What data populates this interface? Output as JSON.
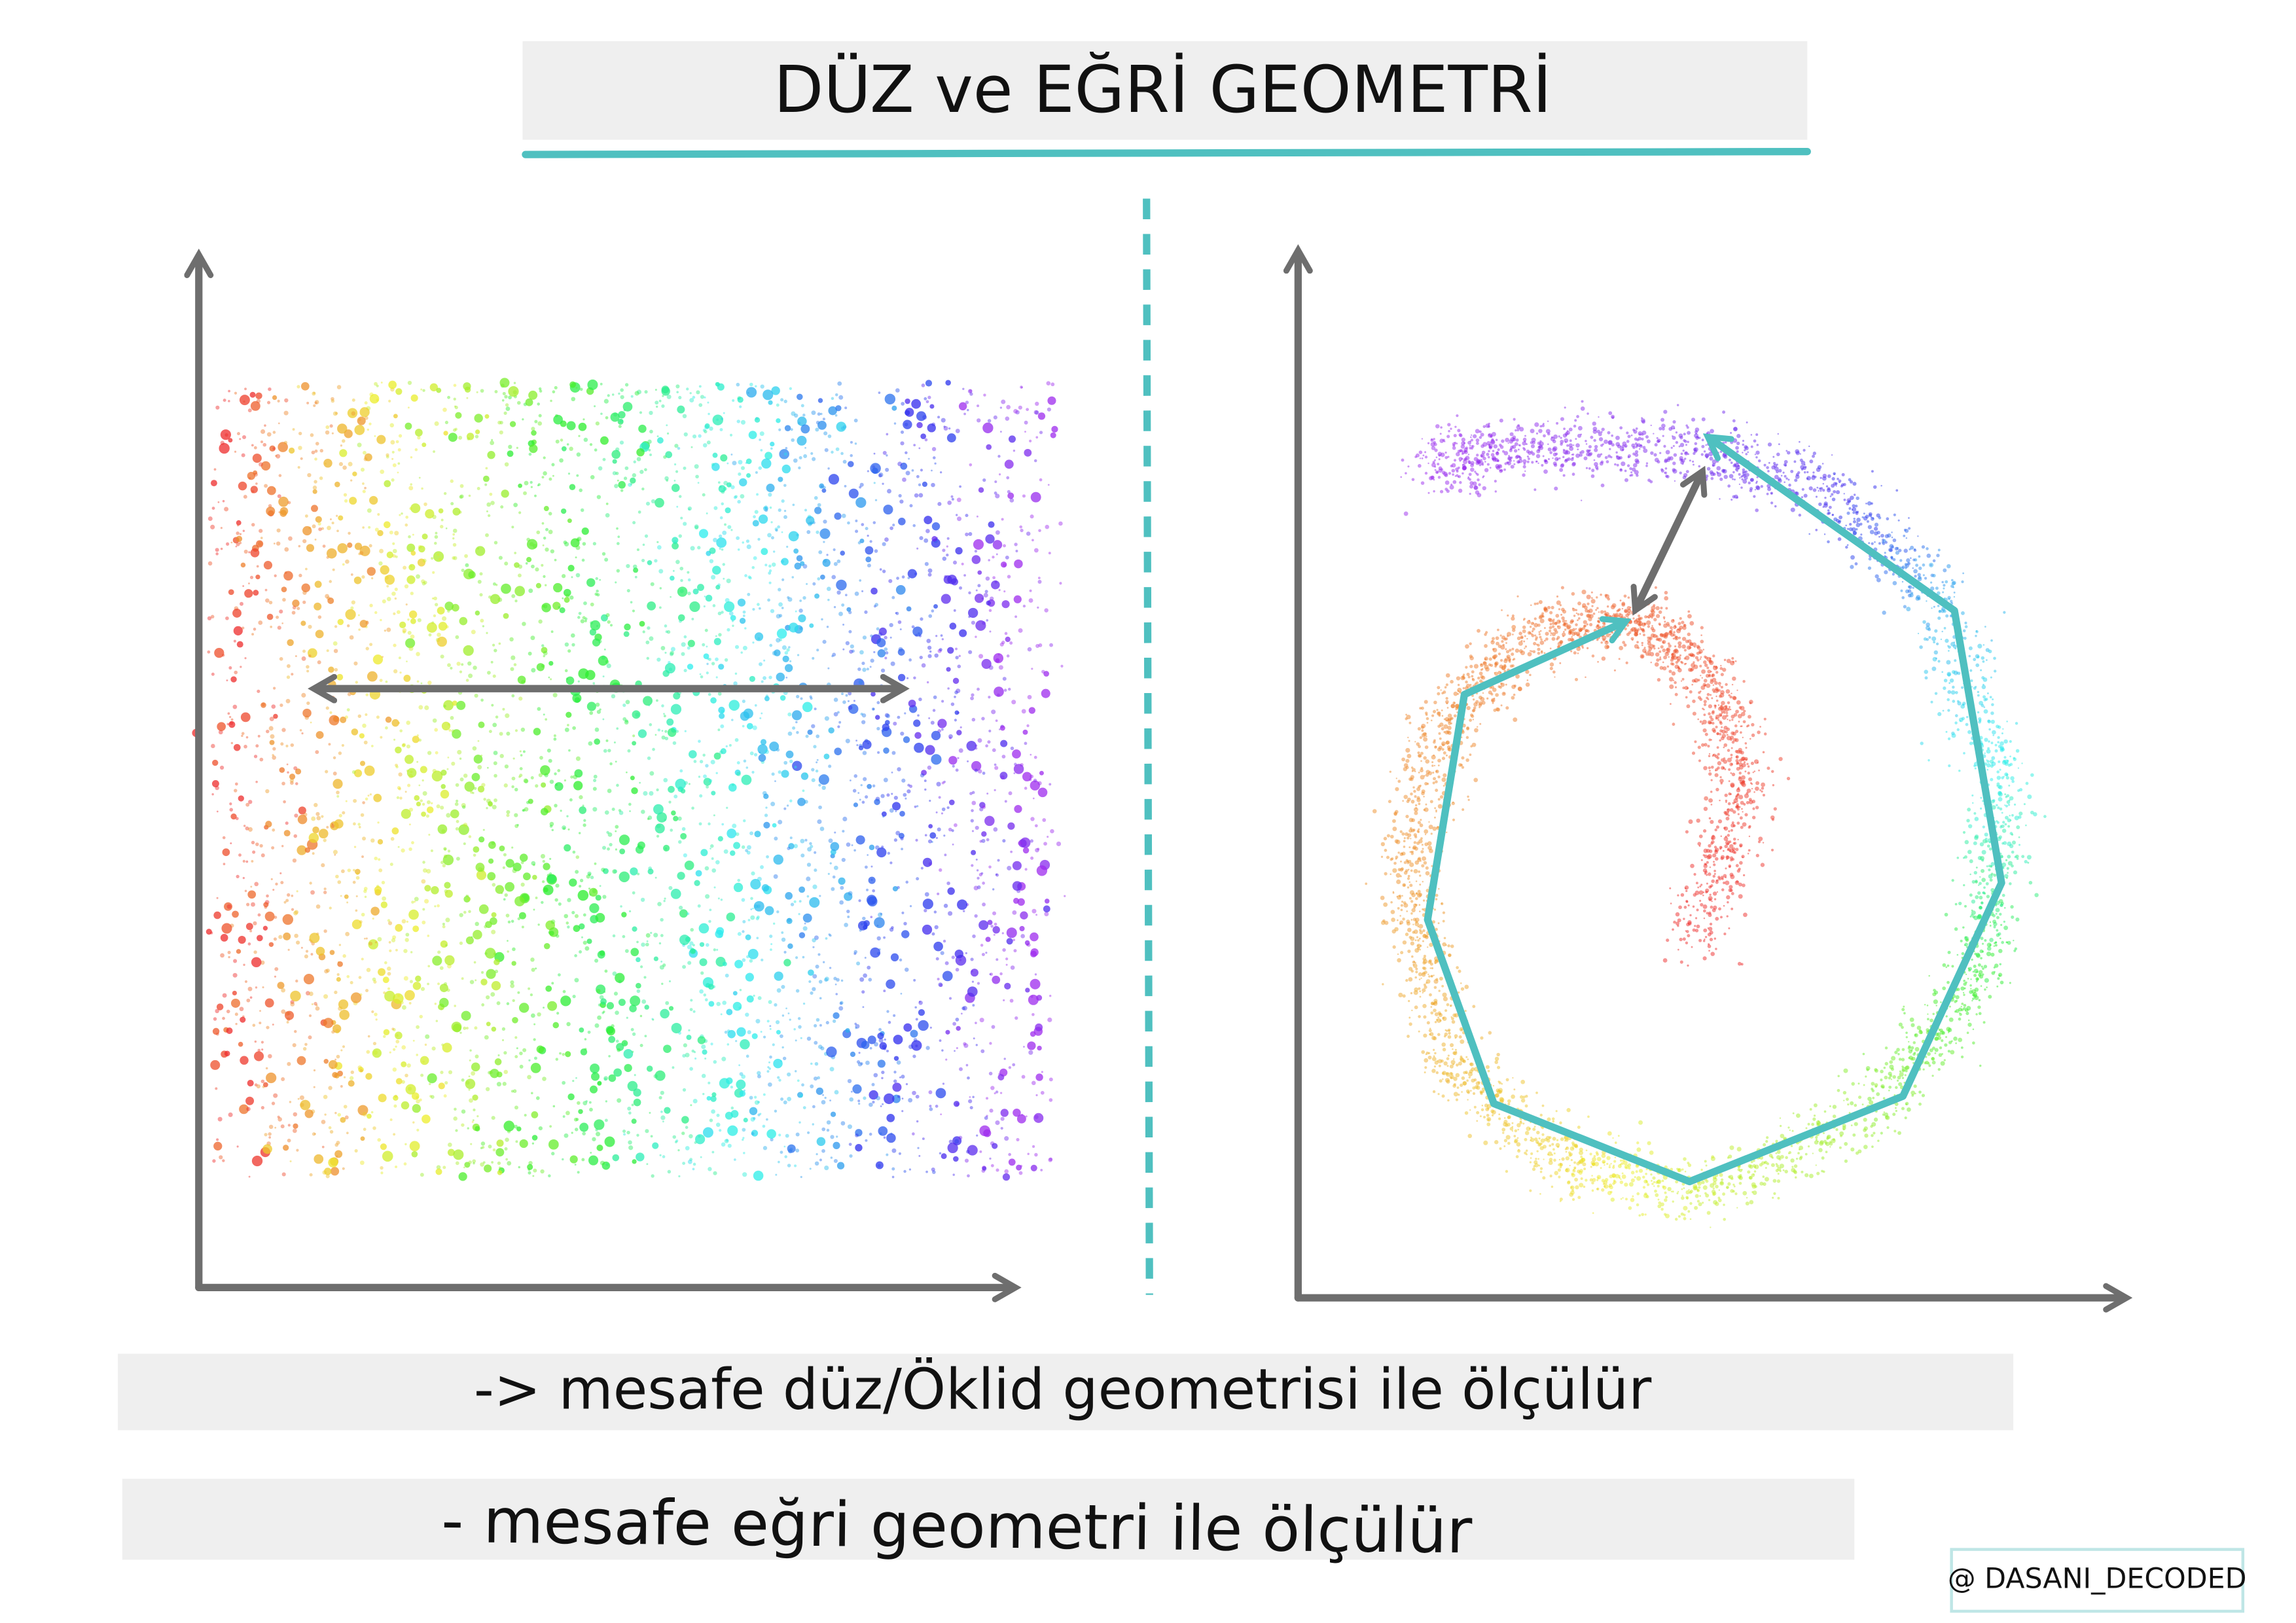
{
  "title": "DÜZ ve EĞRİ GEOMETRİ",
  "captions": [
    "-> mesafe düz/Öklid geometrisi ile ölçülür",
    "- mesafe eğri geometri ile ölçülür"
  ],
  "credit": "@ DASANI_DECODED"
}
